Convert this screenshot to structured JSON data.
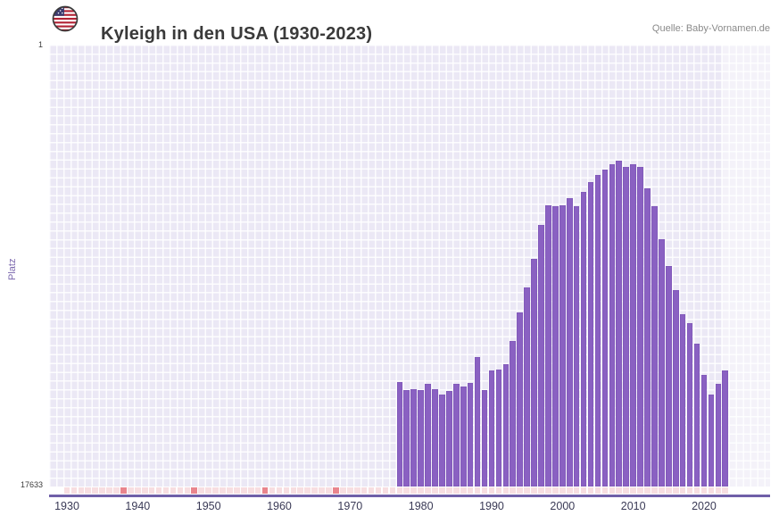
{
  "header": {
    "title": "Kyleigh in den USA (1930-2023)",
    "source": "Quelle: Baby-Vornamen.de",
    "flag": "us-flag-icon"
  },
  "chart_data": {
    "type": "bar",
    "title": "Kyleigh in den USA (1930-2023)",
    "xlabel": "",
    "ylabel": "Platz",
    "y_axis": {
      "min": 1,
      "max": 17633,
      "scale": "log",
      "inverted": true,
      "top_label": "1",
      "bottom_label": "17633"
    },
    "x_range": [
      1930,
      2023
    ],
    "x_ticks": [
      "1930",
      "1940",
      "1950",
      "1960",
      "1970",
      "1980",
      "1990",
      "2000",
      "2010",
      "2020"
    ],
    "grid": true,
    "legend": false,
    "series": [
      {
        "name": "Platz",
        "years": [
          1977,
          1978,
          1979,
          1980,
          1981,
          1982,
          1983,
          1984,
          1985,
          1986,
          1987,
          1988,
          1989,
          1990,
          1991,
          1992,
          1993,
          1994,
          1995,
          1996,
          1997,
          1998,
          1999,
          2000,
          2001,
          2002,
          2003,
          2004,
          2005,
          2006,
          2007,
          2008,
          2009,
          2010,
          2011,
          2012,
          2013,
          2014,
          2015,
          2016,
          2017,
          2018,
          2019,
          2020,
          2021,
          2022,
          2023
        ],
        "platz": [
          1749,
          2089,
          2048,
          2089,
          1819,
          2048,
          2306,
          2131,
          1819,
          1930,
          1783,
          1006,
          2089,
          1352,
          1326,
          1178,
          705,
          375,
          215,
          115,
          54,
          35,
          36,
          35,
          30,
          36,
          26,
          21,
          18,
          16,
          14,
          13,
          15,
          14,
          15,
          24,
          36,
          74,
          134,
          229,
          390,
          475,
          748,
          1493,
          2306,
          1819,
          1352
        ]
      }
    ],
    "no_data_marker_years": [
      1938,
      1948,
      1958,
      1968
    ],
    "recent_band_years": [
      2022,
      2023
    ],
    "colors": {
      "bar": "#8a61c2",
      "bar_border": "#7b52b4",
      "plot_bg": "#ebe8f5",
      "axis_line": "#6f5fa8",
      "no_data_cell": "#f7dee1",
      "no_data_marked": "#e9858d",
      "tick_text": "#3a3a56",
      "ylabel_text": "#7b68ae",
      "source_text": "#8a8a8a",
      "title_text": "#3a3a3a"
    }
  }
}
